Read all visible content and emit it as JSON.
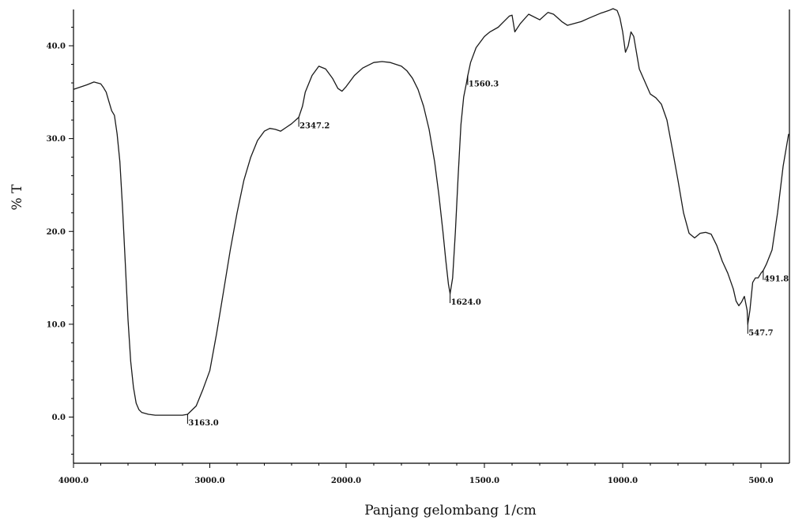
{
  "chart_data": {
    "type": "line",
    "title": "",
    "xlabel": "Panjang gelombang 1/cm",
    "ylabel": "% T",
    "xlim": [
      4000,
      400
    ],
    "ylim": [
      -5,
      44
    ],
    "x_ticks": [
      "4000.0",
      "3000.0",
      "2000.0",
      "1500.0",
      "1000.0",
      "500.0"
    ],
    "y_ticks": [
      "0.0",
      "10.0",
      "20.0",
      "30.0",
      "40.0"
    ],
    "grid": false,
    "x_scale": "piecewise: 4000-2000 compressed, 2000-400 expanded",
    "series": [
      {
        "x": [
          4000,
          3900,
          3850,
          3800,
          3780,
          3760,
          3740,
          3720,
          3700,
          3680,
          3660,
          3640,
          3620,
          3600,
          3580,
          3560,
          3540,
          3520,
          3500,
          3450,
          3400,
          3350,
          3300,
          3250,
          3200,
          3163,
          3100,
          3050,
          3000,
          2950,
          2900,
          2850,
          2800,
          2750,
          2700,
          2650,
          2600,
          2560,
          2520,
          2480,
          2440,
          2400,
          2347,
          2320,
          2300,
          2250,
          2200,
          2150,
          2100,
          2060,
          2030,
          2000,
          1970,
          1940,
          1900,
          1870,
          1840,
          1800,
          1780,
          1760,
          1740,
          1720,
          1700,
          1680,
          1665,
          1650,
          1640,
          1630,
          1624,
          1615,
          1605,
          1595,
          1585,
          1575,
          1565,
          1560,
          1550,
          1530,
          1500,
          1480,
          1450,
          1430,
          1410,
          1400,
          1390,
          1370,
          1340,
          1300,
          1270,
          1250,
          1220,
          1200,
          1150,
          1120,
          1080,
          1050,
          1035,
          1020,
          1010,
          1000,
          990,
          980,
          970,
          960,
          940,
          900,
          880,
          860,
          840,
          820,
          800,
          780,
          760,
          740,
          720,
          700,
          680,
          660,
          640,
          620,
          600,
          590,
          580,
          570,
          560,
          550,
          547.7,
          540,
          530,
          520,
          510,
          500,
          491.8,
          480,
          460,
          440,
          420,
          400
        ],
        "y": [
          35.3,
          35.8,
          36.1,
          35.9,
          35.5,
          35.0,
          34.0,
          33.0,
          32.5,
          30.5,
          27.5,
          22.5,
          16.5,
          10.5,
          6.0,
          3.2,
          1.5,
          0.8,
          0.5,
          0.3,
          0.2,
          0.2,
          0.2,
          0.2,
          0.2,
          0.3,
          1.2,
          3.0,
          5.0,
          9.0,
          13.5,
          18.0,
          22.0,
          25.5,
          28.0,
          29.8,
          30.8,
          31.1,
          31.0,
          30.8,
          31.2,
          31.6,
          32.3,
          33.5,
          35.0,
          36.8,
          37.8,
          37.5,
          36.5,
          35.4,
          35.1,
          35.6,
          36.8,
          37.6,
          38.2,
          38.3,
          38.2,
          37.8,
          37.3,
          36.5,
          35.3,
          33.5,
          31.0,
          27.5,
          24.0,
          20.0,
          17.0,
          14.3,
          13.3,
          15.0,
          20.0,
          26.0,
          31.5,
          34.5,
          36.0,
          36.8,
          38.2,
          39.8,
          41.0,
          41.5,
          42.0,
          42.6,
          43.2,
          43.3,
          41.5,
          42.4,
          43.4,
          42.8,
          43.6,
          43.4,
          42.6,
          42.2,
          42.6,
          43.0,
          43.5,
          43.8,
          44.0,
          43.8,
          43.0,
          41.5,
          39.3,
          40.0,
          41.5,
          41.0,
          37.5,
          34.8,
          34.4,
          33.7,
          32.0,
          28.8,
          25.5,
          22.0,
          19.8,
          19.3,
          19.8,
          19.9,
          19.7,
          18.5,
          16.8,
          15.5,
          13.8,
          12.5,
          12.0,
          12.4,
          13.0,
          11.5,
          10.0,
          11.5,
          14.5,
          15.0,
          15.0,
          15.5,
          15.8,
          16.5,
          18.0,
          22.0,
          27.0,
          30.5
        ]
      }
    ],
    "annotations": [
      {
        "label": "3163.0",
        "x": 3163,
        "y": 0.3
      },
      {
        "label": "2347.2",
        "x": 2347.2,
        "y": 32.3
      },
      {
        "label": "1624.0",
        "x": 1624,
        "y": 13.3
      },
      {
        "label": "1560.3",
        "x": 1560.3,
        "y": 36.8
      },
      {
        "label": "547.7",
        "x": 547.7,
        "y": 10.0
      },
      {
        "label": "491.8",
        "x": 491.8,
        "y": 15.8
      }
    ]
  }
}
